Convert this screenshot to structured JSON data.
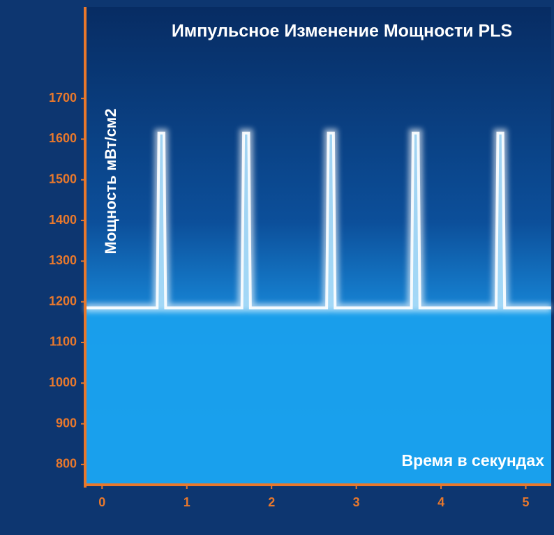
{
  "chart_data": {
    "type": "line",
    "title": "Импульсное Изменение Мощности PLS",
    "y_label": "Мощность мВт/см2",
    "x_label": "Время в секундах",
    "x": [
      -0.2,
      0.65,
      0.67,
      0.73,
      0.75,
      1.65,
      1.67,
      1.73,
      1.75,
      2.65,
      2.67,
      2.73,
      2.75,
      3.65,
      3.67,
      3.73,
      3.75,
      4.65,
      4.67,
      4.73,
      4.75,
      5.3
    ],
    "values": [
      1185,
      1185,
      1615,
      1615,
      1185,
      1185,
      1615,
      1615,
      1185,
      1185,
      1615,
      1615,
      1185,
      1185,
      1615,
      1615,
      1185,
      1185,
      1615,
      1615,
      1185,
      1185
    ],
    "color": "#ffffff",
    "area_color": "#1aa3f0",
    "axis_color": "#e8782c",
    "xlim": [
      -0.2,
      5.3
    ],
    "ylim": [
      750,
      1925
    ],
    "xticks": [
      0,
      1,
      2,
      3,
      4,
      5
    ],
    "yticks": [
      800,
      900,
      1000,
      1100,
      1200,
      1300,
      1400,
      1500,
      1600,
      1700
    ]
  }
}
